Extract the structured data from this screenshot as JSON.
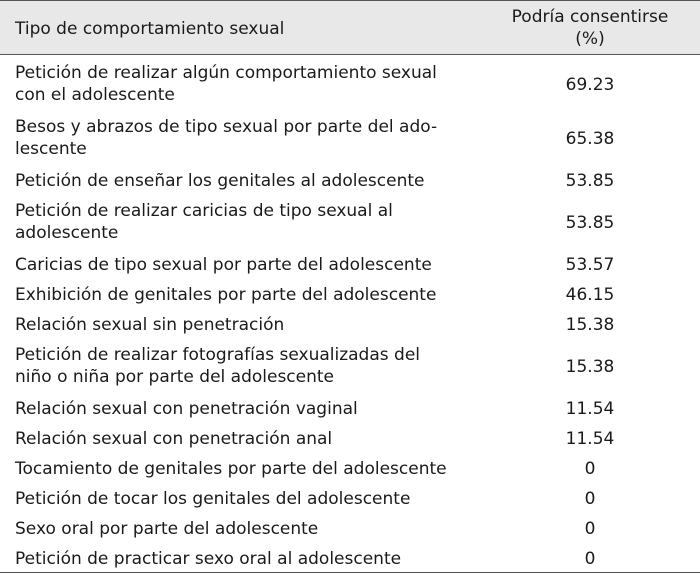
{
  "table": {
    "header": {
      "type": "Tipo de comportamiento sexual",
      "value_line1": "Podría consentirse",
      "value_line2": "(%)"
    },
    "rows": [
      {
        "type": [
          "Petición de realizar algún comportamiento sexual",
          "con el adolescente"
        ],
        "value": "69.23"
      },
      {
        "type": [
          "Besos y abrazos de tipo sexual por parte del ado-",
          "lescente"
        ],
        "value": "65.38"
      },
      {
        "type": [
          "Petición de enseñar los genitales al adolescente"
        ],
        "value": "53.85"
      },
      {
        "type": [
          "Petición de realizar caricias de tipo sexual al",
          "adolescente"
        ],
        "value": "53.85"
      },
      {
        "type": [
          "Caricias de tipo sexual por parte del adolescente"
        ],
        "value": "53.57"
      },
      {
        "type": [
          "Exhibición de genitales por parte del adolescente"
        ],
        "value": "46.15"
      },
      {
        "type": [
          "Relación sexual sin penetración"
        ],
        "value": "15.38"
      },
      {
        "type": [
          "Petición de realizar fotografías sexualizadas del",
          "niño o niña por parte del adolescente"
        ],
        "value": "15.38"
      },
      {
        "type": [
          "Relación sexual con penetración vaginal"
        ],
        "value": "11.54"
      },
      {
        "type": [
          "Relación sexual con penetración anal"
        ],
        "value": "11.54"
      },
      {
        "type": [
          "Tocamiento de genitales por parte del adolescente"
        ],
        "value": "0"
      },
      {
        "type": [
          "Petición de tocar los genitales del adolescente"
        ],
        "value": "0"
      },
      {
        "type": [
          "Sexo oral por parte del adolescente"
        ],
        "value": "0"
      },
      {
        "type": [
          "Petición de practicar sexo oral al adolescente"
        ],
        "value": "0"
      }
    ]
  }
}
